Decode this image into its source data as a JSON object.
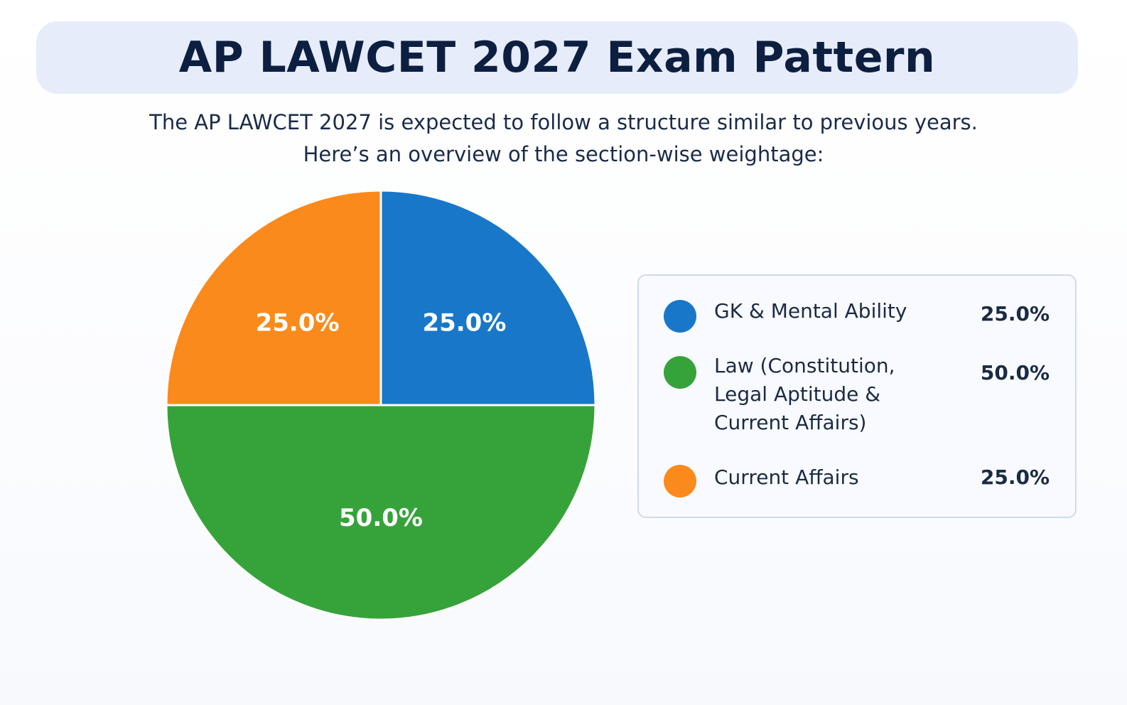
{
  "title": "AP LAWCET 2027 Exam Pattern",
  "subtitle_lines": [
    "The AP LAWCET 2027 is expected to follow a structure similar to previous years.",
    "Here’s an overview of the section-wise weightage:"
  ],
  "colors": {
    "banner": "#e6ecf9",
    "blue": "#1877c9",
    "green": "#36a33a",
    "orange": "#fb8a1c"
  },
  "chart_data": {
    "type": "pie",
    "title": "AP LAWCET 2027 Exam Pattern",
    "slices": [
      {
        "label": "GK & Mental Ability",
        "value": 25.0,
        "display": "25.0%",
        "color": "#1877c9"
      },
      {
        "label": "Law (Constitution, Legal Aptitude & Current Affairs)",
        "value": 50.0,
        "display": "50.0%",
        "color": "#36a33a"
      },
      {
        "label": "Current Affairs",
        "value": 25.0,
        "display": "25.0%",
        "color": "#fb8a1c"
      }
    ],
    "legend_position": "right"
  },
  "legend": {
    "items": [
      {
        "label_lines": [
          "GK & Mental Ability"
        ],
        "value": "25.0%"
      },
      {
        "label_lines": [
          "Law (Constitution,",
          "Legal Aptitude &",
          "Current Affairs)"
        ],
        "value": "50.0%"
      },
      {
        "label_lines": [
          "Current Affairs"
        ],
        "value": "25.0%"
      }
    ]
  }
}
